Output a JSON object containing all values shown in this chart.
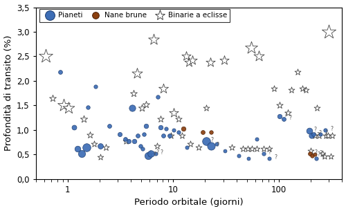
{
  "xlabel": "Periodo orbitale (giorni)",
  "ylabel": "Profondità di transito (%)",
  "xlim_log": [
    0.5,
    400
  ],
  "ylim": [
    0.0,
    3.5
  ],
  "yticks": [
    0.0,
    0.5,
    1.0,
    1.5,
    2.0,
    2.5,
    3.0,
    3.5
  ],
  "ytick_labels": [
    "0,0",
    "0,5",
    "1,0",
    "1,5",
    "2,0",
    "2,5",
    "3,0",
    "3,5"
  ],
  "xticks": [
    1,
    10,
    100
  ],
  "background": "#ffffff",
  "planet_color": "#3d6db5",
  "planet_edge_color": "#1e3d6e",
  "brown_dwarf_color": "#8B4010",
  "brown_dwarf_edge_color": "#4a1e05",
  "eb_facecolor": "#ffffff",
  "eb_edgecolor": "#444444",
  "planets": [
    {
      "period": 0.85,
      "depth": 2.18,
      "size": 18
    },
    {
      "period": 1.15,
      "depth": 1.05,
      "size": 25
    },
    {
      "period": 1.25,
      "depth": 0.62,
      "size": 38
    },
    {
      "period": 1.35,
      "depth": 0.52,
      "size": 55
    },
    {
      "period": 1.5,
      "depth": 0.65,
      "size": 70
    },
    {
      "period": 1.55,
      "depth": 1.47,
      "size": 16
    },
    {
      "period": 1.85,
      "depth": 1.88,
      "size": 15
    },
    {
      "period": 2.05,
      "depth": 0.68,
      "size": 32
    },
    {
      "period": 2.5,
      "depth": 1.08,
      "size": 18
    },
    {
      "period": 3.1,
      "depth": 0.92,
      "size": 20
    },
    {
      "period": 3.5,
      "depth": 0.82,
      "size": 18
    },
    {
      "period": 3.8,
      "depth": 0.78,
      "size": 20
    },
    {
      "period": 4.1,
      "depth": 1.45,
      "size": 45
    },
    {
      "period": 4.3,
      "depth": 0.78,
      "size": 22
    },
    {
      "period": 4.6,
      "depth": 0.88,
      "size": 18
    },
    {
      "period": 4.9,
      "depth": 0.68,
      "size": 16
    },
    {
      "period": 5.1,
      "depth": 0.62,
      "size": 15
    },
    {
      "period": 5.3,
      "depth": 0.92,
      "size": 16
    },
    {
      "period": 5.5,
      "depth": 1.08,
      "size": 22
    },
    {
      "period": 5.8,
      "depth": 0.48,
      "size": 55
    },
    {
      "period": 6.2,
      "depth": 0.52,
      "size": 48
    },
    {
      "period": 6.8,
      "depth": 0.52,
      "size": 14
    },
    {
      "period": 7.2,
      "depth": 1.68,
      "size": 16
    },
    {
      "period": 7.6,
      "depth": 1.05,
      "size": 22
    },
    {
      "period": 8.1,
      "depth": 0.88,
      "size": 18
    },
    {
      "period": 8.6,
      "depth": 1.02,
      "size": 15
    },
    {
      "period": 9.2,
      "depth": 0.88,
      "size": 18
    },
    {
      "period": 10.2,
      "depth": 1.0,
      "size": 14
    },
    {
      "period": 11.2,
      "depth": 0.95,
      "size": 15
    },
    {
      "period": 13.5,
      "depth": 0.65,
      "size": 14
    },
    {
      "period": 20.5,
      "depth": 0.78,
      "size": 70
    },
    {
      "period": 23.0,
      "depth": 0.68,
      "size": 65
    },
    {
      "period": 26.0,
      "depth": 0.72,
      "size": 14
    },
    {
      "period": 31.0,
      "depth": 0.58,
      "size": 13
    },
    {
      "period": 42.0,
      "depth": 0.48,
      "size": 14
    },
    {
      "period": 52.0,
      "depth": 0.42,
      "size": 13
    },
    {
      "period": 62.0,
      "depth": 0.82,
      "size": 14
    },
    {
      "period": 72.0,
      "depth": 0.52,
      "size": 15
    },
    {
      "period": 82.0,
      "depth": 0.42,
      "size": 14
    },
    {
      "period": 102.0,
      "depth": 1.28,
      "size": 22
    },
    {
      "period": 112.0,
      "depth": 1.22,
      "size": 18
    },
    {
      "period": 195.0,
      "depth": 0.98,
      "size": 40
    },
    {
      "period": 205.0,
      "depth": 0.88,
      "size": 28
    },
    {
      "period": 215.0,
      "depth": 0.92,
      "size": 18
    },
    {
      "period": 228.0,
      "depth": 0.42,
      "size": 15
    },
    {
      "period": 248.0,
      "depth": 0.92,
      "size": 14
    },
    {
      "period": 278.0,
      "depth": 1.0,
      "size": 15
    }
  ],
  "brown_dwarfs": [
    {
      "period": 12.5,
      "depth": 1.02,
      "size": 22
    },
    {
      "period": 19.0,
      "depth": 0.95,
      "size": 18
    },
    {
      "period": 23.0,
      "depth": 0.95,
      "size": 16
    },
    {
      "period": 197.0,
      "depth": 0.52,
      "size": 18
    },
    {
      "period": 208.0,
      "depth": 0.48,
      "size": 16
    },
    {
      "period": 220.0,
      "depth": 0.5,
      "size": 14
    }
  ],
  "eclipsing_binaries": [
    {
      "period": 0.62,
      "depth": 2.5,
      "size": 220
    },
    {
      "period": 0.72,
      "depth": 1.65,
      "size": 55
    },
    {
      "period": 0.92,
      "depth": 1.5,
      "size": 180
    },
    {
      "period": 1.02,
      "depth": 1.45,
      "size": 160
    },
    {
      "period": 1.42,
      "depth": 1.22,
      "size": 60
    },
    {
      "period": 1.62,
      "depth": 0.9,
      "size": 50
    },
    {
      "period": 1.78,
      "depth": 0.72,
      "size": 45
    },
    {
      "period": 2.05,
      "depth": 0.45,
      "size": 42
    },
    {
      "period": 2.32,
      "depth": 0.65,
      "size": 50
    },
    {
      "period": 3.55,
      "depth": 0.78,
      "size": 45
    },
    {
      "period": 4.55,
      "depth": 2.15,
      "size": 130
    },
    {
      "period": 4.22,
      "depth": 1.75,
      "size": 55
    },
    {
      "period": 5.05,
      "depth": 1.45,
      "size": 60
    },
    {
      "period": 5.52,
      "depth": 1.52,
      "size": 55
    },
    {
      "period": 6.05,
      "depth": 0.52,
      "size": 45
    },
    {
      "period": 6.55,
      "depth": 2.85,
      "size": 140
    },
    {
      "period": 7.05,
      "depth": 0.68,
      "size": 45
    },
    {
      "period": 7.55,
      "depth": 1.22,
      "size": 50
    },
    {
      "period": 8.1,
      "depth": 1.85,
      "size": 110
    },
    {
      "period": 9.55,
      "depth": 0.88,
      "size": 45
    },
    {
      "period": 10.2,
      "depth": 1.35,
      "size": 100
    },
    {
      "period": 11.2,
      "depth": 1.22,
      "size": 50
    },
    {
      "period": 12.2,
      "depth": 0.88,
      "size": 45
    },
    {
      "period": 13.2,
      "depth": 2.5,
      "size": 100
    },
    {
      "period": 14.2,
      "depth": 2.38,
      "size": 100
    },
    {
      "period": 15.2,
      "depth": 2.42,
      "size": 100
    },
    {
      "period": 14.5,
      "depth": 0.72,
      "size": 45
    },
    {
      "period": 17.5,
      "depth": 0.65,
      "size": 45
    },
    {
      "period": 20.5,
      "depth": 1.45,
      "size": 45
    },
    {
      "period": 22.5,
      "depth": 2.38,
      "size": 100
    },
    {
      "period": 30.5,
      "depth": 2.42,
      "size": 100
    },
    {
      "period": 36.0,
      "depth": 0.65,
      "size": 45
    },
    {
      "period": 46.0,
      "depth": 0.62,
      "size": 45
    },
    {
      "period": 51.0,
      "depth": 0.62,
      "size": 45
    },
    {
      "period": 55.0,
      "depth": 2.68,
      "size": 180
    },
    {
      "period": 56.0,
      "depth": 0.62,
      "size": 45
    },
    {
      "period": 62.0,
      "depth": 0.62,
      "size": 42
    },
    {
      "period": 65.0,
      "depth": 2.5,
      "size": 130
    },
    {
      "period": 72.0,
      "depth": 0.62,
      "size": 42
    },
    {
      "period": 82.0,
      "depth": 0.62,
      "size": 45
    },
    {
      "period": 90.0,
      "depth": 1.85,
      "size": 45
    },
    {
      "period": 102.0,
      "depth": 1.5,
      "size": 50
    },
    {
      "period": 122.0,
      "depth": 1.35,
      "size": 50
    },
    {
      "period": 132.0,
      "depth": 1.82,
      "size": 45
    },
    {
      "period": 152.0,
      "depth": 2.18,
      "size": 45
    },
    {
      "period": 167.0,
      "depth": 1.85,
      "size": 45
    },
    {
      "period": 182.0,
      "depth": 1.82,
      "size": 45
    },
    {
      "period": 200.0,
      "depth": 0.58,
      "size": 45
    },
    {
      "period": 222.0,
      "depth": 0.88,
      "size": 45
    },
    {
      "period": 232.0,
      "depth": 1.45,
      "size": 45
    },
    {
      "period": 242.0,
      "depth": 0.88,
      "size": 45
    },
    {
      "period": 262.0,
      "depth": 0.52,
      "size": 42
    },
    {
      "period": 272.0,
      "depth": 0.47,
      "size": 42
    },
    {
      "period": 282.0,
      "depth": 0.88,
      "size": 45
    },
    {
      "period": 292.0,
      "depth": 0.88,
      "size": 45
    },
    {
      "period": 300.0,
      "depth": 3.0,
      "size": 230
    },
    {
      "period": 312.0,
      "depth": 0.47,
      "size": 42
    },
    {
      "period": 322.0,
      "depth": 0.88,
      "size": 45
    }
  ],
  "question_marks": [
    {
      "period": 5.8,
      "depth": 0.48
    },
    {
      "period": 6.2,
      "depth": 0.52
    },
    {
      "period": 6.8,
      "depth": 0.52
    },
    {
      "period": 20.5,
      "depth": 0.78
    },
    {
      "period": 23.0,
      "depth": 0.68
    },
    {
      "period": 72.0,
      "depth": 0.52
    },
    {
      "period": 82.0,
      "depth": 0.42
    },
    {
      "period": 102.0,
      "depth": 1.28
    },
    {
      "period": 112.0,
      "depth": 1.22
    },
    {
      "period": 195.0,
      "depth": 0.98
    },
    {
      "period": 205.0,
      "depth": 0.88
    },
    {
      "period": 215.0,
      "depth": 0.92
    },
    {
      "period": 228.0,
      "depth": 0.42
    },
    {
      "period": 197.0,
      "depth": 0.52
    },
    {
      "period": 208.0,
      "depth": 0.48
    },
    {
      "period": 220.0,
      "depth": 0.5
    },
    {
      "period": 248.0,
      "depth": 0.92
    },
    {
      "period": 278.0,
      "depth": 1.0
    }
  ]
}
